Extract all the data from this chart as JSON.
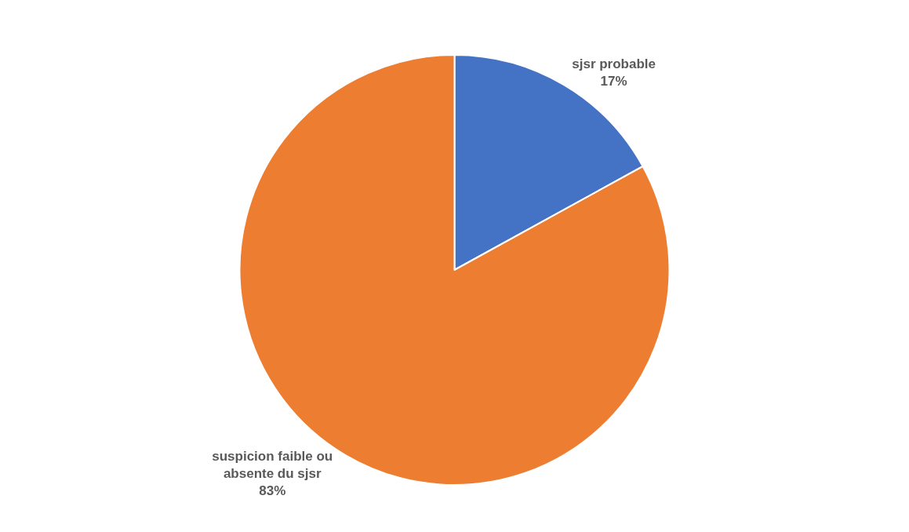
{
  "chart_data": {
    "type": "pie",
    "categories": [
      "sjsr probable",
      "suspicion faible ou absente du sjsr"
    ],
    "values": [
      17,
      83
    ],
    "colors": [
      "#4472c4",
      "#ed7d31"
    ],
    "value_labels": [
      "17%",
      "83%"
    ],
    "legend": false
  }
}
